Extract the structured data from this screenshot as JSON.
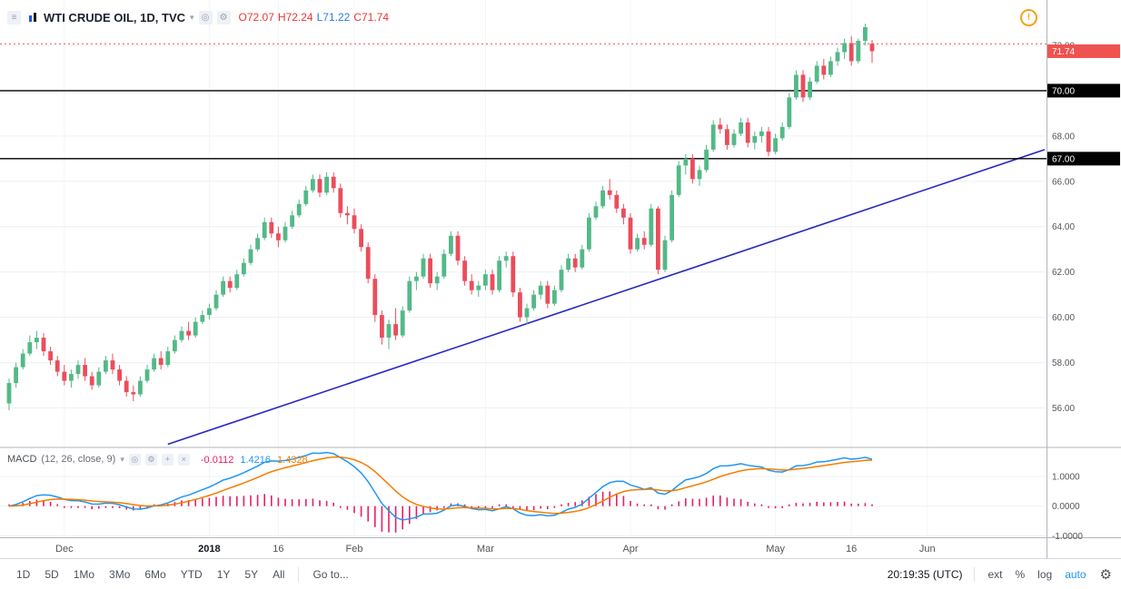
{
  "header": {
    "symbol_title": "WTI CRUDE OIL, 1D, TVC",
    "ohlc_items": [
      {
        "name": "open-value",
        "text": "O72.07",
        "color": "#e53935"
      },
      {
        "name": "high-value",
        "text": "H72.24",
        "color": "#e53935"
      },
      {
        "name": "low-value",
        "text": "L71.22",
        "color": "#2a7de1"
      },
      {
        "name": "close-value",
        "text": "C71.74",
        "color": "#e53935"
      }
    ]
  },
  "icons": {
    "menu": "≡",
    "caret": "▾",
    "eye": "◎",
    "gear": "⚙",
    "plus": "+",
    "close": "×",
    "alert": "!"
  },
  "indicator": {
    "label": "MACD",
    "params": "(12, 26, close, 9)",
    "values": [
      {
        "name": "macd-histogram-value",
        "text": "-0.0112",
        "color": "#e91e63"
      },
      {
        "name": "macd-line-value",
        "text": "1.4216",
        "color": "#2196f3"
      },
      {
        "name": "macd-signal-value",
        "text": "1.4328",
        "color": "#f57c00"
      }
    ]
  },
  "price_axis": {
    "ticks": [
      {
        "text": "72.00",
        "price": 72
      },
      {
        "text": "68.00",
        "price": 68
      },
      {
        "text": "66.00",
        "price": 66
      },
      {
        "text": "64.00",
        "price": 64
      },
      {
        "text": "62.00",
        "price": 62
      },
      {
        "text": "60.00",
        "price": 60
      },
      {
        "text": "58.00",
        "price": 58
      },
      {
        "text": "56.00",
        "price": 56
      }
    ],
    "grid_prices": [
      72,
      70,
      68,
      66,
      64,
      62,
      60,
      58,
      56
    ],
    "last_price": {
      "text": "71.74",
      "price": 71.74,
      "bg": "#ef5350",
      "fg": "#ffffff"
    }
  },
  "macd_axis": {
    "ticks": [
      {
        "text": "1.0000",
        "value": 1
      },
      {
        "text": "0.0000",
        "value": 0
      },
      {
        "text": "-1.0000",
        "value": -1
      }
    ]
  },
  "time_axis": {
    "labels": [
      {
        "text": "Dec",
        "index": 8
      },
      {
        "text": "2018",
        "index": 29,
        "strong": true
      },
      {
        "text": "16",
        "index": 39
      },
      {
        "text": "Feb",
        "index": 50
      },
      {
        "text": "Mar",
        "index": 69
      },
      {
        "text": "Apr",
        "index": 90
      },
      {
        "text": "May",
        "index": 111
      },
      {
        "text": "16",
        "index": 122
      },
      {
        "text": "Jun",
        "index": 133
      }
    ]
  },
  "toolbar": {
    "ranges": [
      "1D",
      "5D",
      "1Mo",
      "3Mo",
      "6Mo",
      "YTD",
      "1Y",
      "5Y",
      "All"
    ],
    "goto_label": "Go to...",
    "clock": "20:19:35 (UTC)",
    "scale_toggles": [
      {
        "label": "ext",
        "active": false
      },
      {
        "label": "%",
        "active": false
      },
      {
        "label": "log",
        "active": false
      },
      {
        "label": "auto",
        "active": true
      }
    ],
    "active_color": "#2196f3"
  },
  "chart_data": {
    "type": "candlestick",
    "title": "WTI CRUDE OIL, 1D, TVC",
    "last_bar": {
      "open": 72.07,
      "high": 72.24,
      "low": 71.22,
      "close": 71.74
    },
    "price_domain": [
      54.3,
      74.0
    ],
    "macd_domain": [
      -1.05,
      1.95
    ],
    "colors": {
      "up": "#53b987",
      "down": "#eb4d5c",
      "macd_line": "#2196f3",
      "signal_line": "#f57c00",
      "hist": "#e91e63",
      "trend": "#2828c0",
      "dotted": "#ef5350",
      "grid": "#eef0f4",
      "divider": "#b2b5be"
    },
    "hlines": [
      {
        "price": 70.0,
        "label": "70.00",
        "color": "#000000"
      },
      {
        "price": 67.0,
        "label": "67.00",
        "color": "#000000"
      }
    ],
    "dotted_line": {
      "price": 72.07
    },
    "trendline": {
      "x1_index": 23,
      "price1": 54.4,
      "x2_index": 150,
      "price2": 67.4
    },
    "macd_params": {
      "fast": 12,
      "slow": 26,
      "signal": 9,
      "source": "close"
    },
    "candles": [
      [
        56.2,
        57.3,
        55.9,
        57.1
      ],
      [
        57.1,
        58.0,
        56.9,
        57.8
      ],
      [
        57.8,
        58.6,
        57.7,
        58.4
      ],
      [
        58.4,
        59.2,
        58.3,
        58.9
      ],
      [
        58.9,
        59.4,
        58.6,
        59.1
      ],
      [
        59.1,
        59.3,
        58.3,
        58.5
      ],
      [
        58.5,
        58.7,
        57.9,
        58.1
      ],
      [
        58.1,
        58.3,
        57.4,
        57.6
      ],
      [
        57.6,
        57.9,
        57.0,
        57.2
      ],
      [
        57.2,
        57.7,
        56.9,
        57.5
      ],
      [
        57.5,
        58.1,
        57.3,
        57.9
      ],
      [
        57.9,
        58.2,
        57.2,
        57.4
      ],
      [
        57.4,
        57.6,
        56.8,
        57.0
      ],
      [
        57.0,
        57.8,
        56.9,
        57.6
      ],
      [
        57.6,
        58.3,
        57.5,
        58.1
      ],
      [
        58.1,
        58.4,
        57.5,
        57.7
      ],
      [
        57.7,
        57.9,
        57.0,
        57.2
      ],
      [
        57.2,
        57.4,
        56.5,
        56.7
      ],
      [
        56.7,
        57.0,
        56.3,
        56.6
      ],
      [
        56.6,
        57.4,
        56.5,
        57.2
      ],
      [
        57.2,
        57.9,
        57.1,
        57.7
      ],
      [
        57.7,
        58.4,
        57.6,
        58.2
      ],
      [
        58.2,
        58.5,
        57.7,
        57.9
      ],
      [
        57.9,
        58.7,
        57.8,
        58.5
      ],
      [
        58.5,
        59.2,
        58.4,
        59.0
      ],
      [
        59.0,
        59.6,
        58.9,
        59.4
      ],
      [
        59.4,
        59.8,
        59.0,
        59.2
      ],
      [
        59.2,
        60.0,
        59.1,
        59.8
      ],
      [
        59.8,
        60.3,
        59.7,
        60.1
      ],
      [
        60.1,
        60.6,
        59.9,
        60.4
      ],
      [
        60.4,
        61.2,
        60.3,
        61.0
      ],
      [
        61.0,
        61.8,
        60.9,
        61.6
      ],
      [
        61.6,
        61.8,
        61.1,
        61.3
      ],
      [
        61.3,
        62.1,
        61.2,
        61.9
      ],
      [
        61.9,
        62.6,
        61.8,
        62.4
      ],
      [
        62.4,
        63.2,
        62.3,
        63.0
      ],
      [
        63.0,
        63.7,
        62.9,
        63.5
      ],
      [
        63.5,
        64.4,
        63.4,
        64.2
      ],
      [
        64.2,
        64.4,
        63.5,
        63.7
      ],
      [
        63.7,
        64.0,
        63.1,
        63.4
      ],
      [
        63.4,
        64.2,
        63.3,
        64.0
      ],
      [
        64.0,
        64.7,
        63.9,
        64.5
      ],
      [
        64.5,
        65.2,
        64.4,
        65.0
      ],
      [
        65.0,
        65.8,
        64.9,
        65.6
      ],
      [
        65.6,
        66.3,
        65.5,
        66.1
      ],
      [
        66.1,
        66.3,
        65.3,
        65.5
      ],
      [
        65.5,
        66.4,
        65.4,
        66.2
      ],
      [
        66.2,
        66.4,
        65.5,
        65.7
      ],
      [
        65.7,
        65.9,
        64.4,
        64.6
      ],
      [
        64.6,
        64.9,
        64.1,
        64.5
      ],
      [
        64.5,
        64.8,
        63.7,
        63.9
      ],
      [
        63.9,
        64.1,
        62.9,
        63.1
      ],
      [
        63.1,
        63.3,
        61.5,
        61.7
      ],
      [
        61.7,
        61.9,
        59.8,
        60.1
      ],
      [
        60.1,
        60.3,
        58.8,
        59.1
      ],
      [
        59.1,
        59.9,
        58.6,
        59.7
      ],
      [
        59.7,
        60.4,
        59.0,
        59.2
      ],
      [
        59.2,
        60.5,
        59.1,
        60.3
      ],
      [
        60.3,
        61.8,
        60.2,
        61.6
      ],
      [
        61.6,
        62.0,
        61.2,
        61.8
      ],
      [
        61.8,
        62.8,
        61.7,
        62.6
      ],
      [
        62.6,
        62.8,
        61.3,
        61.5
      ],
      [
        61.5,
        62.0,
        61.2,
        61.8
      ],
      [
        61.8,
        63.0,
        61.7,
        62.8
      ],
      [
        62.8,
        63.8,
        62.7,
        63.6
      ],
      [
        63.6,
        63.8,
        62.3,
        62.5
      ],
      [
        62.5,
        62.7,
        61.4,
        61.6
      ],
      [
        61.6,
        61.9,
        61.0,
        61.2
      ],
      [
        61.2,
        61.6,
        60.9,
        61.4
      ],
      [
        61.4,
        62.1,
        61.2,
        61.9
      ],
      [
        61.9,
        62.1,
        61.0,
        61.2
      ],
      [
        61.2,
        62.7,
        61.1,
        62.5
      ],
      [
        62.5,
        62.9,
        62.2,
        62.7
      ],
      [
        62.7,
        62.9,
        60.9,
        61.1
      ],
      [
        61.1,
        61.3,
        59.8,
        60.0
      ],
      [
        60.0,
        60.6,
        59.7,
        60.4
      ],
      [
        60.4,
        61.2,
        60.3,
        61.0
      ],
      [
        61.0,
        61.6,
        60.8,
        61.4
      ],
      [
        61.4,
        61.6,
        60.4,
        60.6
      ],
      [
        60.6,
        61.4,
        60.5,
        61.2
      ],
      [
        61.2,
        62.3,
        61.1,
        62.1
      ],
      [
        62.1,
        62.8,
        62.0,
        62.6
      ],
      [
        62.6,
        62.8,
        62.0,
        62.2
      ],
      [
        62.2,
        63.2,
        62.1,
        63.0
      ],
      [
        63.0,
        64.6,
        62.9,
        64.4
      ],
      [
        64.4,
        65.1,
        64.3,
        64.9
      ],
      [
        64.9,
        65.8,
        64.8,
        65.6
      ],
      [
        65.6,
        66.1,
        65.2,
        65.4
      ],
      [
        65.4,
        65.6,
        64.6,
        64.8
      ],
      [
        64.8,
        65.0,
        64.1,
        64.4
      ],
      [
        64.4,
        64.6,
        62.8,
        63.0
      ],
      [
        63.0,
        63.7,
        62.9,
        63.5
      ],
      [
        63.5,
        63.8,
        63.0,
        63.2
      ],
      [
        63.2,
        65.0,
        63.1,
        64.8
      ],
      [
        64.8,
        64.9,
        61.9,
        62.1
      ],
      [
        62.1,
        63.6,
        62.0,
        63.4
      ],
      [
        63.4,
        65.6,
        63.3,
        65.4
      ],
      [
        65.4,
        66.9,
        65.3,
        66.7
      ],
      [
        66.7,
        67.2,
        66.3,
        67.0
      ],
      [
        67.0,
        67.2,
        65.9,
        66.1
      ],
      [
        66.1,
        66.7,
        65.8,
        66.5
      ],
      [
        66.5,
        67.6,
        66.4,
        67.4
      ],
      [
        67.4,
        68.7,
        67.3,
        68.5
      ],
      [
        68.5,
        68.8,
        68.1,
        68.3
      ],
      [
        68.3,
        68.5,
        67.4,
        67.6
      ],
      [
        67.6,
        68.3,
        67.5,
        68.1
      ],
      [
        68.1,
        68.8,
        68.0,
        68.6
      ],
      [
        68.6,
        68.8,
        67.5,
        67.7
      ],
      [
        67.7,
        68.2,
        67.4,
        68.0
      ],
      [
        68.0,
        68.4,
        67.7,
        68.2
      ],
      [
        68.2,
        68.4,
        67.1,
        67.3
      ],
      [
        67.3,
        68.1,
        67.2,
        67.9
      ],
      [
        67.9,
        68.6,
        67.8,
        68.4
      ],
      [
        68.4,
        69.9,
        68.3,
        69.7
      ],
      [
        69.7,
        70.9,
        69.6,
        70.7
      ],
      [
        70.7,
        70.9,
        69.5,
        69.7
      ],
      [
        69.7,
        70.6,
        69.6,
        70.4
      ],
      [
        70.4,
        71.3,
        70.3,
        71.1
      ],
      [
        71.1,
        71.4,
        70.5,
        70.7
      ],
      [
        70.7,
        71.5,
        70.6,
        71.3
      ],
      [
        71.3,
        71.9,
        71.1,
        71.7
      ],
      [
        71.7,
        72.3,
        71.4,
        72.1
      ],
      [
        72.1,
        72.4,
        71.1,
        71.3
      ],
      [
        71.3,
        72.3,
        71.2,
        72.2
      ],
      [
        72.2,
        72.95,
        72.0,
        72.8
      ],
      [
        72.07,
        72.24,
        71.22,
        71.74
      ]
    ]
  }
}
